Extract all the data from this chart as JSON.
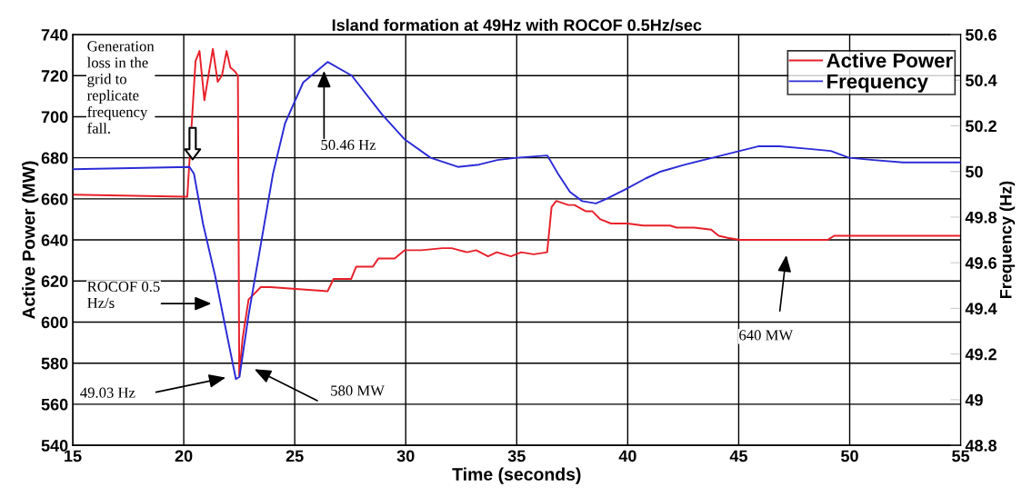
{
  "chart_data": {
    "type": "line",
    "title": "Island formation at 49Hz with ROCOF 0.5Hz/sec",
    "xlabel": "Time (seconds)",
    "ylabel": "Active Power (MW)",
    "y2label": "Frequency (Hz)",
    "xlim": [
      15,
      55
    ],
    "xticks": [
      15,
      20,
      25,
      30,
      35,
      40,
      45,
      50,
      55
    ],
    "ylim": [
      540,
      740
    ],
    "yticks": [
      540,
      560,
      580,
      600,
      620,
      640,
      660,
      680,
      700,
      720,
      740
    ],
    "y2lim": [
      48.8,
      50.6
    ],
    "y2ticks": [
      {
        "value": 48.8,
        "label": "48.8"
      },
      {
        "value": 49.0,
        "label": "49"
      },
      {
        "value": 49.2,
        "label": "49.2"
      },
      {
        "value": 49.4,
        "label": "49.4"
      },
      {
        "value": 49.6,
        "label": "49.6"
      },
      {
        "value": 49.8,
        "label": "49.8"
      },
      {
        "value": 50.0,
        "label": "50"
      },
      {
        "value": 50.2,
        "label": "50.2"
      },
      {
        "value": 50.4,
        "label": "50.4"
      },
      {
        "value": 50.6,
        "label": "50.6"
      }
    ],
    "grid": true,
    "legend": "top right",
    "series": [
      {
        "name": "Active Power",
        "color": "#e8202a",
        "x": [
          15,
          20.05,
          20.16,
          20.53,
          20.71,
          20.93,
          21.31,
          21.53,
          21.72,
          21.93,
          22.1,
          22.31,
          22.44,
          22.5,
          22.65,
          22.92,
          23.47,
          23.9,
          26.48,
          26.75,
          27.54,
          27.77,
          28.52,
          28.77,
          29.5,
          29.96,
          30.7,
          31.66,
          32.07,
          32.76,
          33.17,
          33.71,
          34.1,
          34.74,
          35.2,
          35.76,
          36.37,
          36.57,
          36.78,
          37.32,
          37.6,
          38.1,
          38.4,
          38.77,
          39.25,
          40,
          40.7,
          41.4,
          41.91,
          42.2,
          43.0,
          43.76,
          44.1,
          44.5,
          45.05,
          45.6,
          49.0,
          49.3,
          49.9,
          55
        ],
        "values": [
          662,
          661,
          661,
          727,
          732,
          708,
          733,
          717,
          720,
          732,
          724,
          722,
          720,
          574,
          592,
          611,
          617,
          617,
          615,
          621,
          621,
          627,
          627,
          631,
          631,
          635,
          635,
          636,
          636,
          634,
          635,
          632,
          634,
          632,
          634,
          633,
          634,
          656,
          659,
          657,
          657,
          654,
          654,
          650,
          648,
          648,
          647,
          647,
          647,
          646,
          646,
          645,
          642,
          641,
          640,
          640,
          640,
          642,
          642,
          642
        ]
      },
      {
        "name": "Frequency",
        "color": "#2b2bd6",
        "axis": "y2",
        "x": [
          15,
          20.26,
          20.46,
          20.87,
          21.42,
          21.83,
          22.35,
          22.51,
          22.92,
          23.47,
          24.02,
          24.56,
          25.38,
          26.48,
          27.57,
          28.93,
          29.96,
          31.12,
          32.35,
          33.3,
          34.13,
          35.0,
          36.38,
          36.86,
          37.4,
          37.95,
          38.57,
          39.04,
          39.86,
          40.82,
          41.5,
          42.59,
          43.82,
          45.05,
          45.87,
          46.83,
          48.06,
          49.15,
          49.97,
          51.07,
          52.4,
          55
        ],
        "values": [
          50.01,
          50.02,
          49.99,
          49.77,
          49.54,
          49.34,
          49.09,
          49.1,
          49.37,
          49.68,
          49.99,
          50.21,
          50.39,
          50.48,
          50.42,
          50.25,
          50.14,
          50.06,
          50.02,
          50.03,
          50.05,
          50.06,
          50.07,
          49.99,
          49.91,
          49.87,
          49.86,
          49.88,
          49.92,
          49.97,
          50.0,
          50.03,
          50.06,
          50.09,
          50.11,
          50.11,
          50.1,
          50.09,
          50.06,
          50.05,
          50.04,
          50.04
        ]
      }
    ],
    "annotations": [
      "Generation\nloss in the\ngrid to\nreplicate\nfrequency\nfall.",
      "50.46 Hz",
      "ROCOF 0.5\nHz/s",
      "49.03 Hz",
      "580 MW",
      "640 MW"
    ]
  }
}
